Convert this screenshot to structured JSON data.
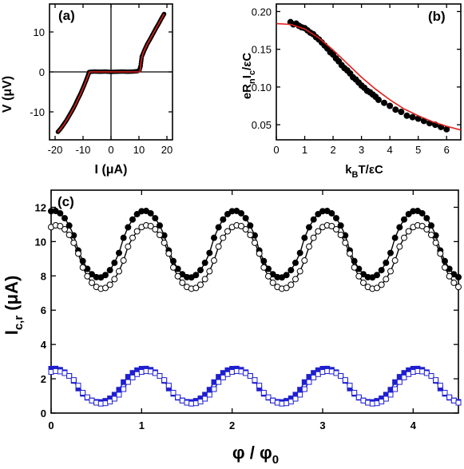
{
  "chart_data": [
    {
      "type": "line",
      "panel_label": "(a)",
      "xlabel": "I (μA)",
      "ylabel": "V (μV)",
      "xlim": [
        -22,
        22
      ],
      "ylim": [
        -17,
        17
      ],
      "xticks": [
        -20,
        -10,
        0,
        10,
        20
      ],
      "yticks": [
        -10,
        0,
        10
      ],
      "zero_lines": true,
      "series": [
        {
          "style": "filled-circle",
          "x": [
            -19,
            -18,
            -17,
            -16,
            -15,
            -14,
            -13,
            -12,
            -11,
            -10,
            -9,
            -8.2,
            -7.8,
            -6,
            -4,
            -2,
            0,
            2,
            4,
            6,
            8,
            9.5,
            10.2,
            10.6,
            11,
            12,
            13,
            14,
            15,
            16,
            17,
            18,
            19
          ],
          "y": [
            -15,
            -14.2,
            -13.2,
            -12.2,
            -11.0,
            -9.8,
            -8.5,
            -7.0,
            -5.6,
            -4.0,
            -2.3,
            -0.8,
            0,
            0.1,
            0.05,
            0.1,
            0,
            0.05,
            0.1,
            0.05,
            0.1,
            0.2,
            0.5,
            1.5,
            3.8,
            5.5,
            7.0,
            8.2,
            9.5,
            10.8,
            12.0,
            13.3,
            14.5
          ]
        },
        {
          "style": "red-fit",
          "x": [
            -19,
            -17,
            -15,
            -13,
            -11,
            -9,
            -7.9,
            -7.7,
            0,
            10.3,
            10.5,
            10.8,
            11.5,
            13,
            15,
            17,
            19
          ],
          "y": [
            -15.1,
            -13.3,
            -11.1,
            -8.6,
            -5.7,
            -2.4,
            -0.4,
            0,
            0,
            0,
            0.8,
            2.8,
            4.8,
            7.0,
            9.5,
            12.0,
            14.5
          ]
        }
      ]
    },
    {
      "type": "scatter",
      "panel_label": "(b)",
      "xlabel": "kBT/εC",
      "ylabel": "eRnIc/εC",
      "xlim": [
        0,
        6.5
      ],
      "ylim": [
        0.03,
        0.21
      ],
      "xticks": [
        0,
        1,
        2,
        3,
        4,
        5,
        6
      ],
      "yticks": [
        0.05,
        0.1,
        0.15,
        0.2
      ],
      "ytick_labels": [
        "0.05",
        "0.10",
        "0.15",
        "0.20"
      ],
      "series": [
        {
          "style": "filled-circle",
          "x": [
            0.5,
            0.6,
            0.7,
            0.8,
            0.9,
            1.0,
            1.1,
            1.2,
            1.3,
            1.4,
            1.5,
            1.6,
            1.7,
            1.8,
            1.9,
            2.0,
            2.1,
            2.2,
            2.3,
            2.4,
            2.5,
            2.6,
            2.7,
            2.8,
            2.9,
            3.0,
            3.1,
            3.2,
            3.3,
            3.4,
            3.5,
            3.6,
            3.8,
            4.0,
            4.2,
            4.4,
            4.6,
            4.8,
            5.0,
            5.2,
            5.4,
            5.6,
            5.8,
            6.0
          ],
          "y": [
            0.186,
            0.183,
            0.184,
            0.181,
            0.179,
            0.178,
            0.175,
            0.172,
            0.17,
            0.166,
            0.163,
            0.159,
            0.155,
            0.151,
            0.146,
            0.143,
            0.138,
            0.134,
            0.129,
            0.125,
            0.122,
            0.118,
            0.113,
            0.11,
            0.106,
            0.102,
            0.099,
            0.095,
            0.093,
            0.09,
            0.087,
            0.083,
            0.079,
            0.075,
            0.07,
            0.067,
            0.062,
            0.06,
            0.058,
            0.055,
            0.052,
            0.05,
            0.047,
            0.044
          ]
        },
        {
          "style": "red-fit",
          "x": [
            0,
            0.5,
            1.0,
            1.5,
            2.0,
            2.5,
            3.0,
            3.5,
            4.0,
            4.5,
            5.0,
            5.5,
            6.0,
            6.5
          ],
          "y": [
            0.184,
            0.183,
            0.177,
            0.165,
            0.149,
            0.131,
            0.113,
            0.097,
            0.083,
            0.071,
            0.062,
            0.054,
            0.048,
            0.043
          ]
        }
      ]
    },
    {
      "type": "line",
      "panel_label": "(c)",
      "xlabel": "φ / φ0",
      "ylabel": "Ic,r (μA)",
      "xlim": [
        0,
        4.5
      ],
      "ylim": [
        0,
        13
      ],
      "xticks": [
        0,
        1,
        2,
        3,
        4
      ],
      "yticks": [
        0,
        2,
        4,
        6,
        8,
        10,
        12
      ],
      "period": 1.0,
      "series": [
        {
          "style": "filled-circle",
          "color": "#000000",
          "offset_y": 9.85,
          "amplitude": 1.95,
          "phase_max": 1.03
        },
        {
          "style": "open-circle",
          "color": "#000000",
          "offset_y": 9.1,
          "amplitude": 1.85,
          "phase_max": 1.06
        },
        {
          "style": "filled-square",
          "color": "#1f1fcf",
          "offset_y": 1.62,
          "amplitude": 0.98,
          "phase_max": 1.03
        },
        {
          "style": "open-square",
          "color": "#1f1fcf",
          "offset_y": 1.5,
          "amplitude": 0.95,
          "phase_max": 1.06
        }
      ]
    }
  ],
  "text": {
    "a_label": "(a)",
    "b_label": "(b)",
    "c_label": "(c)",
    "a_ylabel": "V (μV)",
    "a_xlabel": "I (μA)",
    "b_ylabel_main": "eR",
    "b_ylabel_sub_n": "n",
    "b_ylabel_mid": "I",
    "b_ylabel_sub_c": "c",
    "b_ylabel_end": "/εC",
    "b_xlabel_main": "k",
    "b_xlabel_sub": "B",
    "b_xlabel_end": "T/εC",
    "c_ylabel_main": "I",
    "c_ylabel_sub": "c,r",
    "c_ylabel_end": " (μA)",
    "c_xlabel_main": "φ / φ",
    "c_xlabel_sub": "0"
  }
}
